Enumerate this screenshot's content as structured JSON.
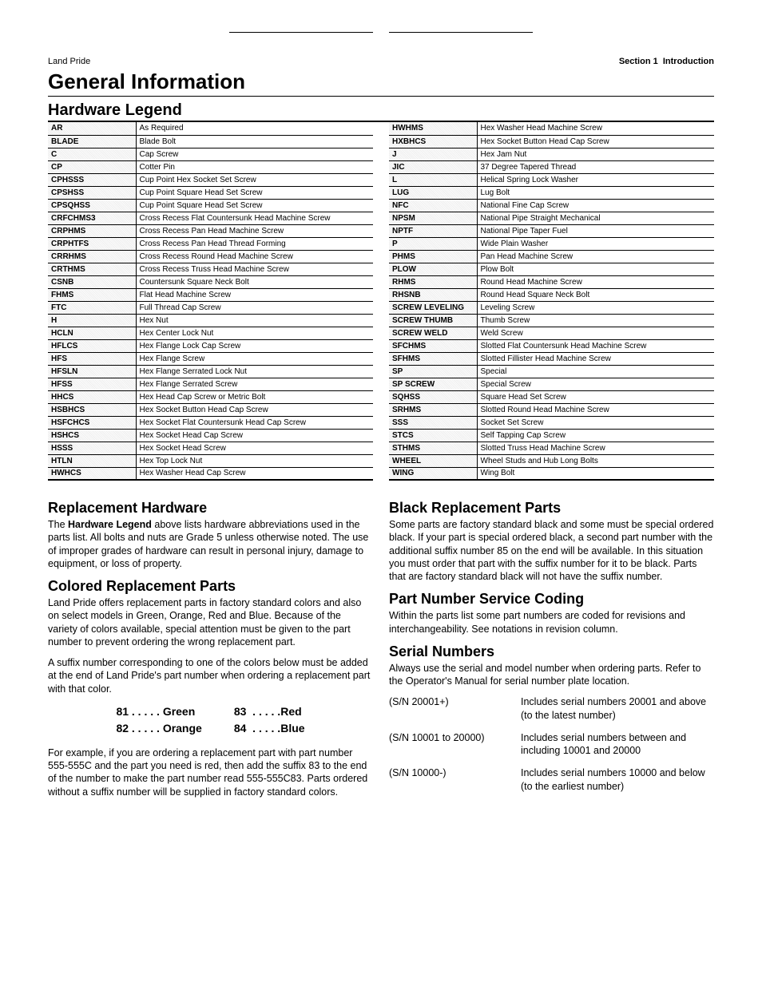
{
  "header": {
    "left": "Land Pride",
    "right_bold": "Section 1",
    "right_light": "Introduction"
  },
  "title": "General Information",
  "legend_title": "Hardware Legend",
  "legend_left": [
    {
      "a": "AR",
      "d": "As Required"
    },
    {
      "a": "BLADE",
      "d": "Blade Bolt"
    },
    {
      "a": "C",
      "d": "Cap Screw"
    },
    {
      "a": "CP",
      "d": "Cotter Pin"
    },
    {
      "a": "CPHSSS",
      "d": "Cup Point Hex Socket Set Screw"
    },
    {
      "a": "CPSHSS",
      "d": "Cup Point Square Head Set Screw"
    },
    {
      "a": "CPSQHSS",
      "d": "Cup Point Square Head Set Screw"
    },
    {
      "a": "CRFCHMS3",
      "d": "Cross Recess Flat Countersunk Head Machine Screw"
    },
    {
      "a": "CRPHMS",
      "d": "Cross Recess Pan Head Machine Screw"
    },
    {
      "a": "CRPHTFS",
      "d": "Cross Recess Pan Head Thread Forming"
    },
    {
      "a": "CRRHMS",
      "d": "Cross Recess Round Head Machine Screw"
    },
    {
      "a": "CRTHMS",
      "d": "Cross Recess Truss Head Machine Screw"
    },
    {
      "a": "CSNB",
      "d": "Countersunk Square Neck Bolt"
    },
    {
      "a": "FHMS",
      "d": "Flat Head Machine Screw"
    },
    {
      "a": "FTC",
      "d": "Full Thread Cap Screw"
    },
    {
      "a": "H",
      "d": "Hex Nut"
    },
    {
      "a": "HCLN",
      "d": "Hex Center Lock Nut"
    },
    {
      "a": "HFLCS",
      "d": "Hex Flange Lock Cap Screw"
    },
    {
      "a": "HFS",
      "d": "Hex Flange Screw"
    },
    {
      "a": "HFSLN",
      "d": "Hex Flange Serrated Lock Nut"
    },
    {
      "a": "HFSS",
      "d": "Hex Flange Serrated Screw"
    },
    {
      "a": "HHCS",
      "d": "Hex Head Cap Screw or Metric Bolt"
    },
    {
      "a": "HSBHCS",
      "d": "Hex Socket Button Head Cap Screw"
    },
    {
      "a": "HSFCHCS",
      "d": "Hex Socket Flat Countersunk Head Cap Screw"
    },
    {
      "a": "HSHCS",
      "d": "Hex Socket Head Cap Screw"
    },
    {
      "a": "HSSS",
      "d": "Hex Socket Head Screw"
    },
    {
      "a": "HTLN",
      "d": "Hex Top Lock Nut"
    },
    {
      "a": "HWHCS",
      "d": "Hex Washer Head Cap Screw"
    }
  ],
  "legend_right": [
    {
      "a": "HWHMS",
      "d": "Hex Washer Head Machine Screw"
    },
    {
      "a": "HXBHCS",
      "d": "Hex Socket Button Head Cap Screw"
    },
    {
      "a": "J",
      "d": "Hex Jam Nut"
    },
    {
      "a": "JIC",
      "d": "37 Degree Tapered Thread"
    },
    {
      "a": "L",
      "d": "Helical Spring Lock Washer"
    },
    {
      "a": "LUG",
      "d": "Lug Bolt"
    },
    {
      "a": "NFC",
      "d": "National Fine Cap Screw"
    },
    {
      "a": "NPSM",
      "d": "National Pipe Straight Mechanical"
    },
    {
      "a": "NPTF",
      "d": "National Pipe Taper Fuel"
    },
    {
      "a": "P",
      "d": "Wide Plain Washer"
    },
    {
      "a": "PHMS",
      "d": "Pan Head Machine Screw"
    },
    {
      "a": "PLOW",
      "d": "Plow Bolt"
    },
    {
      "a": "RHMS",
      "d": "Round Head Machine Screw"
    },
    {
      "a": "RHSNB",
      "d": "Round Head Square Neck Bolt"
    },
    {
      "a": "SCREW LEVELING",
      "d": "Leveling Screw"
    },
    {
      "a": "SCREW THUMB",
      "d": "Thumb Screw"
    },
    {
      "a": "SCREW WELD",
      "d": "Weld Screw"
    },
    {
      "a": "SFCHMS",
      "d": "Slotted Flat Countersunk Head Machine Screw"
    },
    {
      "a": "SFHMS",
      "d": "Slotted Fillister Head Machine Screw"
    },
    {
      "a": "SP",
      "d": "Special"
    },
    {
      "a": "SP SCREW",
      "d": "Special Screw"
    },
    {
      "a": "SQHSS",
      "d": "Square Head Set Screw"
    },
    {
      "a": "SRHMS",
      "d": "Slotted Round Head Machine Screw"
    },
    {
      "a": "SSS",
      "d": "Socket Set Screw"
    },
    {
      "a": "STCS",
      "d": "Self Tapping Cap Screw"
    },
    {
      "a": "STHMS",
      "d": "Slotted Truss Head Machine Screw"
    },
    {
      "a": "WHEEL",
      "d": "Wheel Studs and Hub Long Bolts"
    },
    {
      "a": "WING",
      "d": "Wing Bolt"
    }
  ],
  "replacement_hw": {
    "title": "Replacement Hardware",
    "bold": "Hardware Legend",
    "body_before": "The ",
    "body_after": " above lists hardware abbreviations used in the parts list. All bolts and nuts are Grade 5 unless otherwise noted. The use of improper grades of hardware can result in personal injury, damage to equipment, or loss of property."
  },
  "colored": {
    "title": "Colored Replacement Parts",
    "p1": "Land Pride offers replacement parts in factory standard colors and also on select models in Green, Orange, Red and Blue. Because of the variety of colors available, special attention must be given to the part number to prevent ordering the wrong replacement part.",
    "p2": "A suffix number corresponding to one of the colors below must be added at the end of Land Pride's part number when ordering a replacement part with that color.",
    "codes": [
      {
        "n": "81",
        "c": "Green"
      },
      {
        "n": "82",
        "c": "Orange"
      },
      {
        "n": "83",
        "c": "Red"
      },
      {
        "n": "84",
        "c": "Blue"
      }
    ],
    "p3": "For example, if you are ordering a replacement part with part number 555-555C and the part you need is red, then add the suffix 83 to the end of the number to make the part number read 555-555C83. Parts ordered without a suffix number will be supplied in factory standard colors."
  },
  "black": {
    "title": "Black Replacement Parts",
    "p1": "Some parts are factory standard black and some must be special ordered black. If your part is special ordered black, a second part number with the additional suffix number 85 on the end will be available. In this situation you must order that part with the suffix number for it to be black. Parts that are factory standard black will not have the suffix number."
  },
  "coding": {
    "title": "Part Number Service Coding",
    "p1": "Within the parts list some part numbers are coded for revisions and interchangeability. See notations in revision column."
  },
  "serial": {
    "title": "Serial Numbers",
    "p1": "Always use the serial and model number when ordering parts. Refer to the Operator's Manual for serial number plate location.",
    "rows": [
      {
        "label": "(S/N 20001+)",
        "desc": "Includes serial numbers 20001 and above (to the latest number)"
      },
      {
        "label": "(S/N 10001 to 20000)",
        "desc": "Includes serial numbers between and including 10001 and 20000"
      },
      {
        "label": "(S/N 10000-)",
        "desc": "Includes serial numbers 10000 and below (to the earliest number)"
      }
    ]
  }
}
